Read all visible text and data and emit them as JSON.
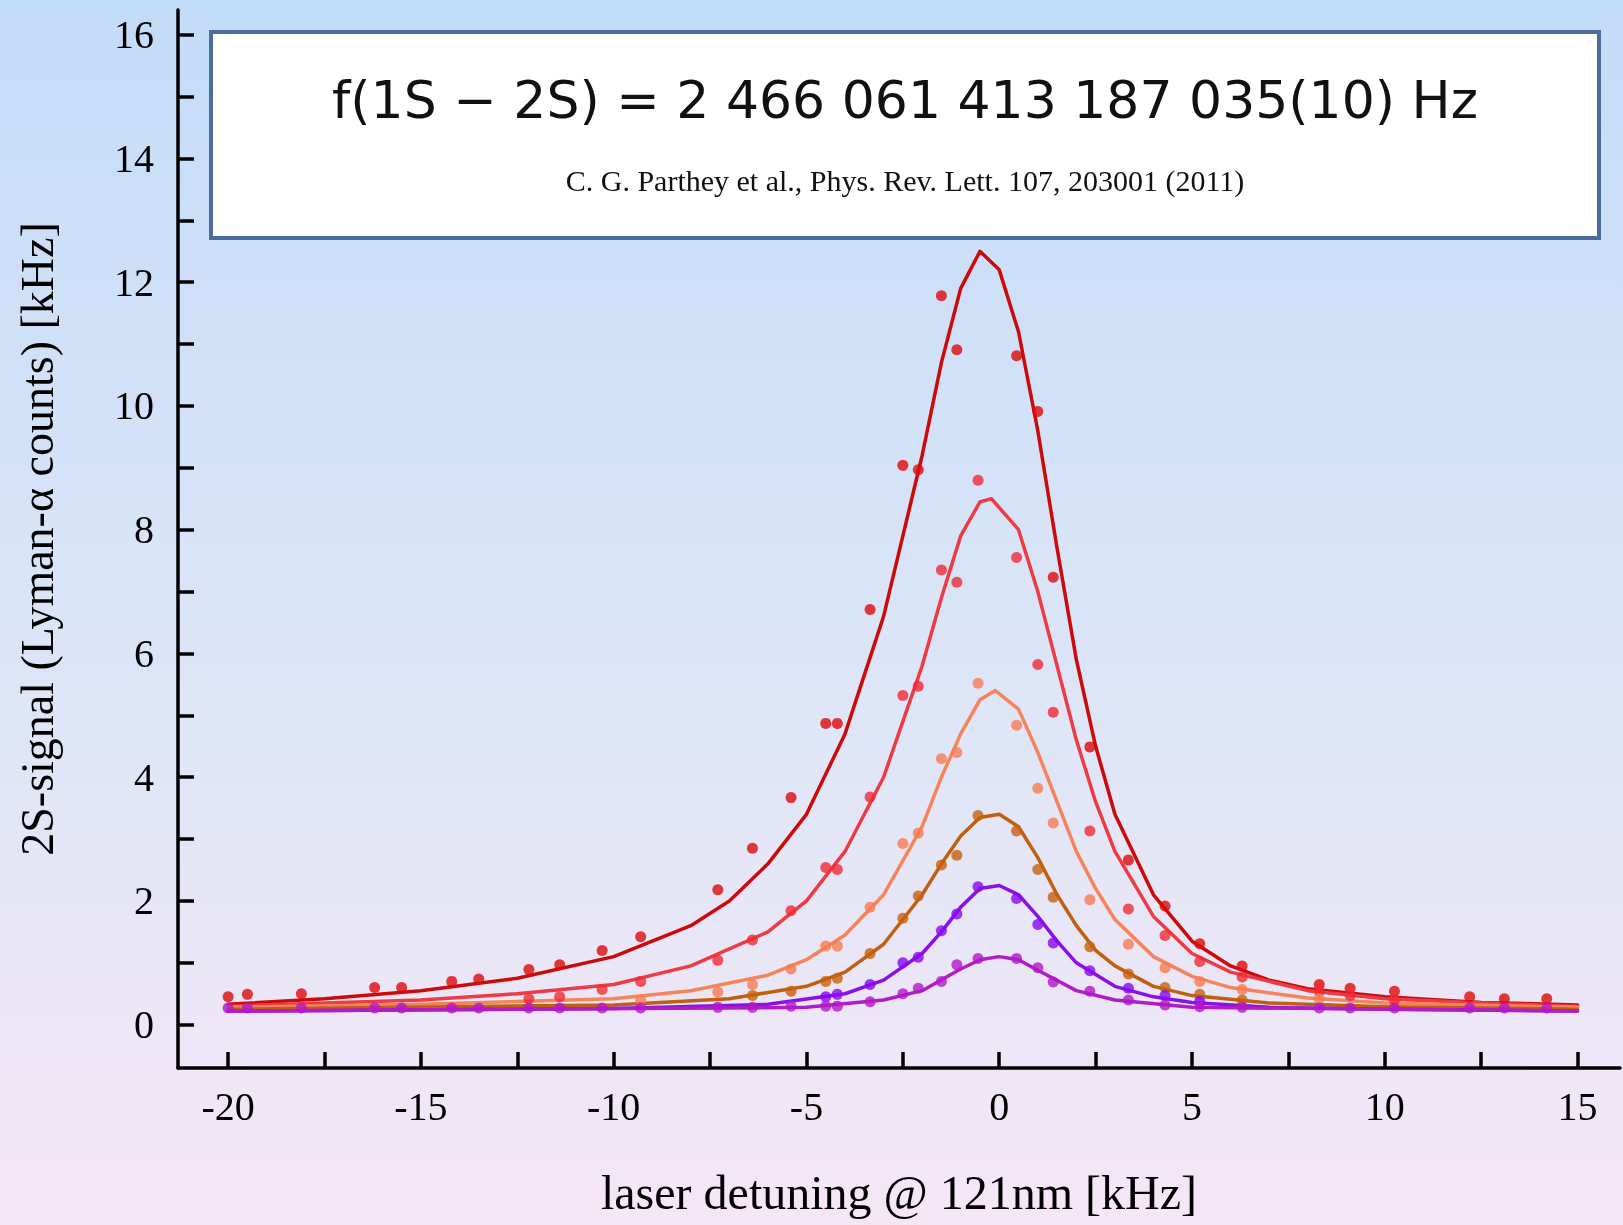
{
  "chart_data": {
    "type": "scatter",
    "xlabel": "laser detuning @ 121nm [kHz]",
    "ylabel": "2S-signal (Lyman-α counts) [kHz]",
    "annotations": [
      "f(1S − 2S) = 2 466 061 413 187 035(10) Hz",
      "C. G. Parthey et al., Phys. Rev. Lett. 107, 203001 (2011)"
    ],
    "xlim": [
      -21.3,
      16.1
    ],
    "ylim": [
      -0.7,
      16.4
    ],
    "xticks": [
      -20,
      {
        "value": -17.5,
        "label": null
      },
      -15,
      {
        "value": -12.5,
        "label": null
      },
      -10,
      {
        "value": -7.5,
        "label": null
      },
      -5,
      {
        "value": -2.5,
        "label": null
      },
      0,
      {
        "value": 2.5,
        "label": null
      },
      5,
      {
        "value": 7.5,
        "label": null
      },
      10,
      {
        "value": 12.5,
        "label": null
      },
      15
    ],
    "yticks": [
      0,
      {
        "value": 1,
        "label": null
      },
      2,
      {
        "value": 3,
        "label": null
      },
      4,
      {
        "value": 5,
        "label": null
      },
      6,
      {
        "value": 7,
        "label": null
      },
      8,
      {
        "value": 9,
        "label": null
      },
      10,
      {
        "value": 11,
        "label": null
      },
      12,
      {
        "value": 13,
        "label": null
      },
      14,
      {
        "value": 15,
        "label": null
      },
      16
    ],
    "marker": "circle",
    "series": [
      {
        "type": "line",
        "marker": "none",
        "color": "#cc0a0a",
        "x": [
          -20,
          -17.5,
          -15,
          -12.5,
          -10,
          -8,
          -7,
          -6,
          -5,
          -4,
          -3,
          -2,
          -1.5,
          -1,
          -0.5,
          0,
          0.5,
          1,
          1.5,
          2,
          2.5,
          3,
          4,
          5,
          6,
          7,
          8,
          10,
          12.5,
          15
        ],
        "values": [
          0.33,
          0.42,
          0.55,
          0.75,
          1.1,
          1.6,
          2.0,
          2.6,
          3.4,
          4.7,
          6.6,
          9.2,
          10.7,
          11.9,
          12.5,
          12.2,
          11.2,
          9.6,
          7.7,
          5.9,
          4.5,
          3.4,
          2.1,
          1.35,
          0.95,
          0.72,
          0.58,
          0.45,
          0.36,
          0.32
        ]
      },
      {
        "type": "line",
        "marker": "none",
        "color": "#ee3a44",
        "x": [
          -20,
          -15,
          -12.5,
          -10,
          -8,
          -6,
          -5,
          -4,
          -3,
          -2,
          -1.5,
          -1,
          -0.5,
          -0.2,
          0.5,
          1,
          1.5,
          2,
          2.5,
          3,
          4,
          5,
          6,
          8,
          10,
          12.5,
          15
        ],
        "values": [
          0.3,
          0.4,
          0.5,
          0.65,
          0.95,
          1.5,
          2.0,
          2.8,
          4.0,
          5.8,
          6.9,
          7.9,
          8.45,
          8.5,
          8.0,
          7.0,
          5.8,
          4.6,
          3.6,
          2.8,
          1.75,
          1.15,
          0.85,
          0.55,
          0.42,
          0.35,
          0.3
        ]
      },
      {
        "type": "line",
        "marker": "none",
        "color": "#f5845a",
        "x": [
          -20,
          -15,
          -10,
          -8,
          -6,
          -5,
          -4,
          -3,
          -2,
          -1.5,
          -1,
          -0.5,
          -0.1,
          0.5,
          1,
          1.5,
          2,
          2.5,
          3,
          4,
          5,
          6,
          8,
          10,
          15
        ],
        "values": [
          0.28,
          0.33,
          0.42,
          0.55,
          0.8,
          1.05,
          1.45,
          2.1,
          3.2,
          4.0,
          4.7,
          5.25,
          5.4,
          5.1,
          4.4,
          3.6,
          2.8,
          2.2,
          1.7,
          1.1,
          0.78,
          0.6,
          0.43,
          0.35,
          0.28
        ]
      },
      {
        "type": "line",
        "marker": "none",
        "color": "#c0600f",
        "x": [
          -20,
          -10,
          -7,
          -5,
          -4,
          -3,
          -2,
          -1.5,
          -1,
          -0.5,
          0,
          0.5,
          1,
          1.5,
          2,
          2.5,
          3,
          4,
          5,
          7,
          10,
          15
        ],
        "values": [
          0.25,
          0.32,
          0.42,
          0.62,
          0.85,
          1.3,
          2.1,
          2.6,
          3.05,
          3.35,
          3.4,
          3.2,
          2.7,
          2.1,
          1.6,
          1.2,
          0.95,
          0.62,
          0.47,
          0.35,
          0.29,
          0.25
        ]
      },
      {
        "type": "line",
        "marker": "none",
        "color": "#8a10e8",
        "x": [
          -20,
          -10,
          -6,
          -4,
          -3,
          -2,
          -1.5,
          -1,
          -0.5,
          0,
          0.5,
          1,
          1.5,
          2,
          3,
          4,
          5,
          7,
          10,
          15
        ],
        "values": [
          0.22,
          0.26,
          0.33,
          0.5,
          0.72,
          1.15,
          1.5,
          1.9,
          2.2,
          2.25,
          2.1,
          1.75,
          1.35,
          1.0,
          0.62,
          0.45,
          0.36,
          0.28,
          0.25,
          0.22
        ]
      },
      {
        "type": "line",
        "marker": "none",
        "color": "#b01cc8",
        "x": [
          -20,
          -5,
          -3,
          -2,
          -1,
          -0.5,
          0,
          0.5,
          1,
          2,
          3,
          5,
          15
        ],
        "values": [
          0.22,
          0.28,
          0.4,
          0.55,
          0.9,
          1.05,
          1.1,
          1.05,
          0.88,
          0.55,
          0.4,
          0.28,
          0.22
        ]
      },
      {
        "color": "#dd0a0a",
        "x": [
          -20,
          -19.5,
          -18.1,
          -16.2,
          -15.5,
          -14.2,
          -13.5,
          -12.2,
          -11.4,
          -10.3,
          -9.3,
          -7.3,
          -6.4,
          -5.4,
          -4.5,
          -4.2,
          -3.35,
          -2.5,
          -2.1,
          -1.5,
          -1.1,
          0.45,
          1.0,
          1.4,
          2.35,
          3.35,
          4.3,
          5.2,
          6.3,
          8.3,
          9.1,
          10.25,
          12.2,
          13.1,
          14.2
        ],
        "values": [
          0.45,
          0.49,
          0.5,
          0.6,
          0.6,
          0.7,
          0.74,
          0.89,
          0.97,
          1.2,
          1.42,
          2.18,
          2.85,
          3.67,
          4.87,
          4.87,
          6.71,
          9.04,
          8.97,
          11.78,
          10.91,
          10.81,
          9.91,
          7.23,
          4.49,
          2.66,
          1.92,
          1.31,
          0.95,
          0.65,
          0.59,
          0.54,
          0.45,
          0.42,
          0.42
        ]
      },
      {
        "color": "#f02a36",
        "x": [
          -12.2,
          -11.4,
          -10.3,
          -9.3,
          -7.3,
          -6.4,
          -5.4,
          -4.5,
          -4.2,
          -3.35,
          -2.5,
          -2.1,
          -1.5,
          -1.1,
          -0.55,
          0.45,
          1.0,
          1.4,
          2.35,
          3.35,
          4.3,
          5.2,
          6.3,
          8.3,
          9.1,
          10.25
        ],
        "values": [
          0.42,
          0.45,
          0.57,
          0.7,
          1.04,
          1.37,
          1.84,
          2.54,
          2.51,
          3.68,
          5.32,
          5.47,
          7.35,
          7.15,
          8.8,
          7.55,
          5.82,
          5.05,
          3.13,
          1.87,
          1.44,
          1.02,
          0.77,
          0.54,
          0.47,
          0.4
        ]
      },
      {
        "color": "#f87c52",
        "x": [
          -9.3,
          -7.3,
          -6.4,
          -5.4,
          -4.5,
          -4.2,
          -3.35,
          -2.5,
          -2.1,
          -1.5,
          -1.1,
          -0.55,
          0.45,
          1.0,
          1.4,
          2.35,
          3.35,
          4.3,
          5.2,
          6.3,
          8.3
        ],
        "values": [
          0.4,
          0.53,
          0.65,
          0.9,
          1.27,
          1.27,
          1.9,
          2.93,
          3.1,
          4.3,
          4.4,
          5.52,
          4.84,
          3.82,
          3.26,
          2.02,
          1.3,
          0.92,
          0.7,
          0.57,
          0.42
        ]
      },
      {
        "color": "#c8600c",
        "x": [
          -6.4,
          -5.4,
          -4.5,
          -4.2,
          -3.35,
          -2.5,
          -2.1,
          -1.5,
          -1.1,
          -0.55,
          0.45,
          1.0,
          1.4,
          2.35,
          3.35,
          4.3,
          5.2,
          6.3
        ],
        "values": [
          0.47,
          0.54,
          0.7,
          0.75,
          1.15,
          1.72,
          2.08,
          2.58,
          2.74,
          3.38,
          3.13,
          2.51,
          2.06,
          1.26,
          0.82,
          0.6,
          0.49,
          0.4
        ]
      },
      {
        "color": "#8a08f0",
        "x": [
          -4.5,
          -4.2,
          -3.35,
          -2.5,
          -2.1,
          -1.5,
          -1.1,
          -0.55,
          0.45,
          1.0,
          1.4,
          2.35,
          3.35,
          4.3,
          5.2
        ],
        "values": [
          0.45,
          0.49,
          0.65,
          1.0,
          1.09,
          1.52,
          1.79,
          2.23,
          2.04,
          1.62,
          1.32,
          0.87,
          0.59,
          0.47,
          0.38
        ]
      },
      {
        "color": "#b418c8",
        "x": [
          -20,
          -19.5,
          -18.1,
          -16.2,
          -15.5,
          -14.2,
          -13.5,
          -12.2,
          -11.4,
          -10.3,
          -9.3,
          -7.3,
          -6.4,
          -5.4,
          -4.5,
          -4.2,
          -3.35,
          -2.5,
          -2.1,
          -1.5,
          -1.1,
          -0.55,
          0.45,
          1.0,
          1.4,
          2.35,
          3.35,
          4.3,
          5.2,
          6.3,
          8.3,
          9.1,
          10.25,
          12.2,
          13.1,
          14.2
        ],
        "values": [
          0.27,
          0.27,
          0.27,
          0.27,
          0.27,
          0.27,
          0.27,
          0.27,
          0.27,
          0.27,
          0.27,
          0.28,
          0.28,
          0.3,
          0.3,
          0.3,
          0.37,
          0.5,
          0.59,
          0.7,
          0.97,
          1.07,
          1.07,
          0.92,
          0.69,
          0.54,
          0.4,
          0.32,
          0.29,
          0.28,
          0.27,
          0.27,
          0.27,
          0.27,
          0.27,
          0.27
        ]
      }
    ]
  }
}
